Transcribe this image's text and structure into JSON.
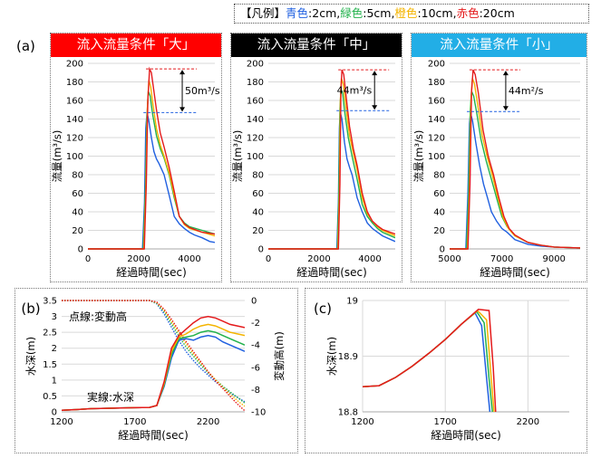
{
  "legend": {
    "prefix": "【凡例】",
    "items": [
      {
        "label": "青色",
        "value": ":2cm,",
        "color": "#2060E0"
      },
      {
        "label": "緑色",
        "value": ":5cm,",
        "color": "#22B14C"
      },
      {
        "label": "橙色",
        "value": ":10cm,",
        "color": "#F4B400"
      },
      {
        "label": "赤色",
        "value": ":20cm",
        "color": "#E41A1C"
      }
    ]
  },
  "panel_labels": {
    "a": "(a)",
    "b": "(b)",
    "c": "(c)"
  },
  "headers": [
    {
      "text": "流入流量条件「大」",
      "bg": "#FF0000"
    },
    {
      "text": "流入流量条件「中」",
      "bg": "#000000"
    },
    {
      "text": "流入流量条件「小」",
      "bg": "#22AEE6"
    }
  ],
  "colors": {
    "blue": "#2060E0",
    "green": "#22B14C",
    "orange": "#F4B400",
    "red": "#E41A1C"
  },
  "chart_data": [
    {
      "id": "a1",
      "type": "line",
      "xlabel": "経過時間(sec)",
      "ylabel": "流量(m³/s)",
      "xlim": [
        0,
        5000
      ],
      "ylim": [
        0,
        200
      ],
      "xticks": [
        0,
        2000,
        4000
      ],
      "yticks": [
        0,
        20,
        40,
        60,
        80,
        100,
        120,
        140,
        160,
        180,
        200
      ],
      "annotation": "50m³/s",
      "peak_top": 194,
      "peak_bottom": 147,
      "series": [
        {
          "color": "blue",
          "x": [
            0,
            2150,
            2230,
            2280,
            2330,
            2400,
            2500,
            2600,
            2700,
            2800,
            2900,
            3000,
            3200,
            3400,
            3600,
            3800,
            4000,
            4200,
            4500,
            4800,
            5000
          ],
          "y": [
            0,
            0,
            50,
            130,
            147,
            138,
            120,
            105,
            97,
            92,
            86,
            80,
            58,
            35,
            27,
            22,
            18,
            15,
            12,
            8,
            7
          ]
        },
        {
          "color": "green",
          "x": [
            0,
            2180,
            2260,
            2320,
            2380,
            2450,
            2550,
            2700,
            2850,
            3000,
            3200,
            3400,
            3600,
            3800,
            4000,
            4500,
            5000
          ],
          "y": [
            0,
            0,
            60,
            140,
            170,
            165,
            145,
            122,
            108,
            98,
            80,
            55,
            35,
            28,
            24,
            20,
            16
          ]
        },
        {
          "color": "orange",
          "x": [
            0,
            2200,
            2280,
            2340,
            2400,
            2470,
            2550,
            2700,
            2850,
            3000,
            3200,
            3400,
            3600,
            3800,
            4000,
            4500,
            5000
          ],
          "y": [
            0,
            0,
            60,
            150,
            182,
            175,
            158,
            130,
            112,
            100,
            82,
            58,
            35,
            26,
            22,
            18,
            14
          ]
        },
        {
          "color": "red",
          "x": [
            0,
            2220,
            2300,
            2360,
            2430,
            2500,
            2600,
            2700,
            2850,
            3000,
            3200,
            3400,
            3600,
            3800,
            4000,
            4500,
            5000
          ],
          "y": [
            0,
            0,
            70,
            160,
            194,
            190,
            170,
            150,
            125,
            110,
            88,
            62,
            35,
            27,
            23,
            18,
            16
          ]
        }
      ]
    },
    {
      "id": "a2",
      "type": "line",
      "xlabel": "経過時間(sec)",
      "ylabel": "流量(m³/s)",
      "xlim": [
        0,
        5000
      ],
      "ylim": [
        0,
        200
      ],
      "xticks": [
        0,
        2000,
        4000
      ],
      "yticks": [
        0,
        20,
        40,
        60,
        80,
        100,
        120,
        140,
        160,
        180,
        200
      ],
      "annotation": "44m³/s",
      "peak_top": 193,
      "peak_bottom": 149,
      "series": [
        {
          "color": "blue",
          "x": [
            0,
            2700,
            2760,
            2800,
            2830,
            2900,
            3000,
            3100,
            3200,
            3300,
            3500,
            3700,
            3900,
            4100,
            4300,
            4500,
            5000
          ],
          "y": [
            0,
            0,
            50,
            130,
            148,
            140,
            115,
            97,
            88,
            80,
            55,
            40,
            28,
            22,
            18,
            14,
            8
          ]
        },
        {
          "color": "green",
          "x": [
            0,
            2720,
            2780,
            2820,
            2860,
            2930,
            3000,
            3150,
            3300,
            3500,
            3700,
            3900,
            4100,
            4300,
            4500,
            5000
          ],
          "y": [
            0,
            0,
            60,
            150,
            172,
            168,
            150,
            120,
            100,
            75,
            48,
            35,
            28,
            22,
            18,
            12
          ]
        },
        {
          "color": "orange",
          "x": [
            0,
            2740,
            2800,
            2840,
            2880,
            2950,
            3050,
            3200,
            3350,
            3500,
            3700,
            3900,
            4100,
            4300,
            4500,
            5000
          ],
          "y": [
            0,
            0,
            60,
            160,
            184,
            178,
            155,
            122,
            103,
            85,
            55,
            38,
            30,
            24,
            20,
            14
          ]
        },
        {
          "color": "red",
          "x": [
            0,
            2760,
            2820,
            2860,
            2900,
            2970,
            3050,
            3200,
            3350,
            3500,
            3700,
            3900,
            4100,
            4300,
            4500,
            5000
          ],
          "y": [
            0,
            0,
            70,
            170,
            193,
            188,
            168,
            132,
            108,
            90,
            60,
            40,
            30,
            25,
            21,
            16
          ]
        }
      ]
    },
    {
      "id": "a3",
      "type": "line",
      "xlabel": "経過時間(sec)",
      "ylabel": "流量(m³/s)",
      "xlim": [
        5000,
        10000
      ],
      "ylim": [
        0,
        200
      ],
      "xticks": [
        5000,
        7000,
        9000
      ],
      "yticks": [
        0,
        20,
        40,
        60,
        80,
        100,
        120,
        140,
        160,
        180,
        200
      ],
      "annotation": "44m²/s",
      "peak_top": 193,
      "peak_bottom": 148,
      "series": [
        {
          "color": "blue",
          "x": [
            5000,
            5620,
            5700,
            5760,
            5800,
            5880,
            6000,
            6150,
            6300,
            6450,
            6600,
            6800,
            7000,
            7200,
            7500,
            8000,
            8500,
            9000,
            10000
          ],
          "y": [
            0,
            0,
            60,
            135,
            147,
            138,
            115,
            90,
            70,
            55,
            40,
            30,
            22,
            18,
            10,
            5,
            3,
            2,
            1
          ]
        },
        {
          "color": "green",
          "x": [
            5000,
            5650,
            5730,
            5790,
            5840,
            5920,
            6050,
            6200,
            6400,
            6600,
            6800,
            7000,
            7200,
            7500,
            8000,
            8500,
            9000,
            10000
          ],
          "y": [
            0,
            0,
            60,
            150,
            170,
            165,
            145,
            118,
            95,
            75,
            55,
            35,
            24,
            14,
            7,
            4,
            2,
            1
          ]
        },
        {
          "color": "orange",
          "x": [
            5000,
            5680,
            5760,
            5820,
            5870,
            5950,
            6080,
            6250,
            6450,
            6650,
            6850,
            7050,
            7250,
            7500,
            8000,
            8500,
            9000,
            10000
          ],
          "y": [
            0,
            0,
            65,
            160,
            184,
            178,
            155,
            122,
            98,
            78,
            55,
            34,
            22,
            14,
            7,
            4,
            2,
            1
          ]
        },
        {
          "color": "red",
          "x": [
            5000,
            5700,
            5780,
            5840,
            5900,
            5980,
            6100,
            6280,
            6480,
            6680,
            6880,
            7080,
            7280,
            7500,
            8000,
            8500,
            9000,
            10000
          ],
          "y": [
            0,
            0,
            70,
            170,
            193,
            188,
            168,
            128,
            100,
            80,
            56,
            35,
            22,
            15,
            7,
            4,
            2,
            1
          ]
        }
      ]
    },
    {
      "id": "b",
      "type": "line",
      "xlabel": "経過時間(sec)",
      "ylabel": "水深(m)",
      "ylabel_right": "変動高(m)",
      "xlim": [
        1200,
        2450
      ],
      "ylim": [
        0,
        3.5
      ],
      "ylim_right": [
        -10,
        0
      ],
      "xticks": [
        1200,
        1700,
        2200
      ],
      "yticks": [
        0,
        0.5,
        1,
        1.5,
        2,
        2.5,
        3,
        3.5
      ],
      "yticks_right": [
        0,
        -2,
        -4,
        -6,
        -8,
        -10
      ],
      "note_dotted": "点線:変動高",
      "note_solid": "実線:水深",
      "series_solid": [
        {
          "color": "blue",
          "x": [
            1200,
            1300,
            1400,
            1500,
            1600,
            1700,
            1800,
            1850,
            1900,
            1950,
            2000,
            2050,
            2100,
            2150,
            2200,
            2250,
            2300,
            2350,
            2400,
            2450
          ],
          "y": [
            0.05,
            0.07,
            0.1,
            0.11,
            0.12,
            0.13,
            0.14,
            0.2,
            0.8,
            1.7,
            2.25,
            2.3,
            2.25,
            2.35,
            2.4,
            2.35,
            2.2,
            2.1,
            2.0,
            1.9
          ]
        },
        {
          "color": "green",
          "x": [
            1200,
            1300,
            1400,
            1500,
            1600,
            1700,
            1800,
            1850,
            1900,
            1950,
            2000,
            2050,
            2100,
            2150,
            2200,
            2250,
            2300,
            2350,
            2400,
            2450
          ],
          "y": [
            0.05,
            0.07,
            0.1,
            0.11,
            0.12,
            0.13,
            0.14,
            0.2,
            0.85,
            1.8,
            2.3,
            2.35,
            2.4,
            2.5,
            2.55,
            2.5,
            2.4,
            2.3,
            2.2,
            2.1
          ]
        },
        {
          "color": "orange",
          "x": [
            1200,
            1300,
            1400,
            1500,
            1600,
            1700,
            1800,
            1850,
            1900,
            1950,
            2000,
            2050,
            2100,
            2150,
            2200,
            2250,
            2300,
            2350,
            2400,
            2450
          ],
          "y": [
            0.05,
            0.07,
            0.1,
            0.11,
            0.12,
            0.13,
            0.14,
            0.2,
            0.9,
            1.9,
            2.35,
            2.45,
            2.6,
            2.7,
            2.75,
            2.7,
            2.6,
            2.5,
            2.45,
            2.4
          ]
        },
        {
          "color": "red",
          "x": [
            1200,
            1300,
            1400,
            1500,
            1600,
            1700,
            1800,
            1850,
            1900,
            1950,
            2000,
            2050,
            2100,
            2150,
            2200,
            2250,
            2300,
            2350,
            2400,
            2450
          ],
          "y": [
            0.05,
            0.07,
            0.1,
            0.11,
            0.12,
            0.13,
            0.14,
            0.2,
            0.95,
            2.0,
            2.4,
            2.6,
            2.8,
            2.95,
            3.0,
            2.95,
            2.85,
            2.75,
            2.7,
            2.65
          ]
        }
      ],
      "series_dotted": [
        {
          "color": "blue",
          "x": [
            1200,
            1800,
            1850,
            1900,
            1950,
            2000,
            2050,
            2100,
            2150,
            2200,
            2250,
            2300,
            2350,
            2400,
            2450
          ],
          "y": [
            0,
            0,
            -0.3,
            -1.2,
            -2.4,
            -3.6,
            -4.6,
            -5.4,
            -6.1,
            -6.7,
            -7.3,
            -7.8,
            -8.3,
            -8.7,
            -9.1
          ]
        },
        {
          "color": "green",
          "x": [
            1200,
            1800,
            1850,
            1900,
            1950,
            2000,
            2050,
            2100,
            2150,
            2200,
            2250,
            2300,
            2350,
            2400,
            2450
          ],
          "y": [
            0,
            0,
            -0.25,
            -1.0,
            -2.1,
            -3.2,
            -4.2,
            -5.0,
            -5.8,
            -6.5,
            -7.1,
            -7.7,
            -8.2,
            -8.7,
            -9.2
          ]
        },
        {
          "color": "orange",
          "x": [
            1200,
            1800,
            1850,
            1900,
            1950,
            2000,
            2050,
            2100,
            2150,
            2200,
            2250,
            2300,
            2350,
            2400,
            2450
          ],
          "y": [
            0,
            0,
            -0.2,
            -0.9,
            -1.9,
            -2.9,
            -3.9,
            -4.8,
            -5.6,
            -6.4,
            -7.1,
            -7.8,
            -8.4,
            -9.0,
            -9.5
          ]
        },
        {
          "color": "red",
          "x": [
            1200,
            1800,
            1850,
            1900,
            1950,
            2000,
            2050,
            2100,
            2150,
            2200,
            2250,
            2300,
            2350,
            2400,
            2450
          ],
          "y": [
            0,
            0,
            -0.15,
            -0.8,
            -1.7,
            -2.7,
            -3.7,
            -4.6,
            -5.5,
            -6.4,
            -7.2,
            -7.9,
            -8.6,
            -9.3,
            -9.9
          ]
        }
      ]
    },
    {
      "id": "c",
      "type": "line",
      "xlabel": "経過時間(sec)",
      "ylabel": "水深(m)",
      "xlim": [
        1200,
        2450
      ],
      "ylim": [
        18.8,
        19.0
      ],
      "xticks": [
        1200,
        1700,
        2200
      ],
      "yticks": [
        18.8,
        18.9,
        19
      ],
      "ytick_labels": [
        "18.8",
        "18.9",
        "19"
      ],
      "series": [
        {
          "color": "blue",
          "x": [
            1200,
            1300,
            1400,
            1500,
            1600,
            1700,
            1800,
            1880,
            1920,
            1950,
            1970
          ],
          "y": [
            18.845,
            18.847,
            18.862,
            18.882,
            18.905,
            18.93,
            18.958,
            18.978,
            18.955,
            18.86,
            18.8
          ]
        },
        {
          "color": "green",
          "x": [
            1200,
            1300,
            1400,
            1500,
            1600,
            1700,
            1800,
            1890,
            1935,
            1965,
            1985
          ],
          "y": [
            18.845,
            18.847,
            18.862,
            18.882,
            18.905,
            18.93,
            18.958,
            18.98,
            18.96,
            18.86,
            18.8
          ]
        },
        {
          "color": "orange",
          "x": [
            1200,
            1300,
            1400,
            1500,
            1600,
            1700,
            1800,
            1895,
            1950,
            1975,
            1995
          ],
          "y": [
            18.845,
            18.847,
            18.862,
            18.882,
            18.905,
            18.93,
            18.958,
            18.982,
            18.965,
            18.87,
            18.8
          ]
        },
        {
          "color": "red",
          "x": [
            1200,
            1300,
            1400,
            1500,
            1600,
            1700,
            1800,
            1900,
            1965,
            1990,
            2005
          ],
          "y": [
            18.845,
            18.847,
            18.862,
            18.882,
            18.905,
            18.93,
            18.958,
            18.984,
            18.982,
            18.88,
            18.8
          ]
        }
      ]
    }
  ]
}
